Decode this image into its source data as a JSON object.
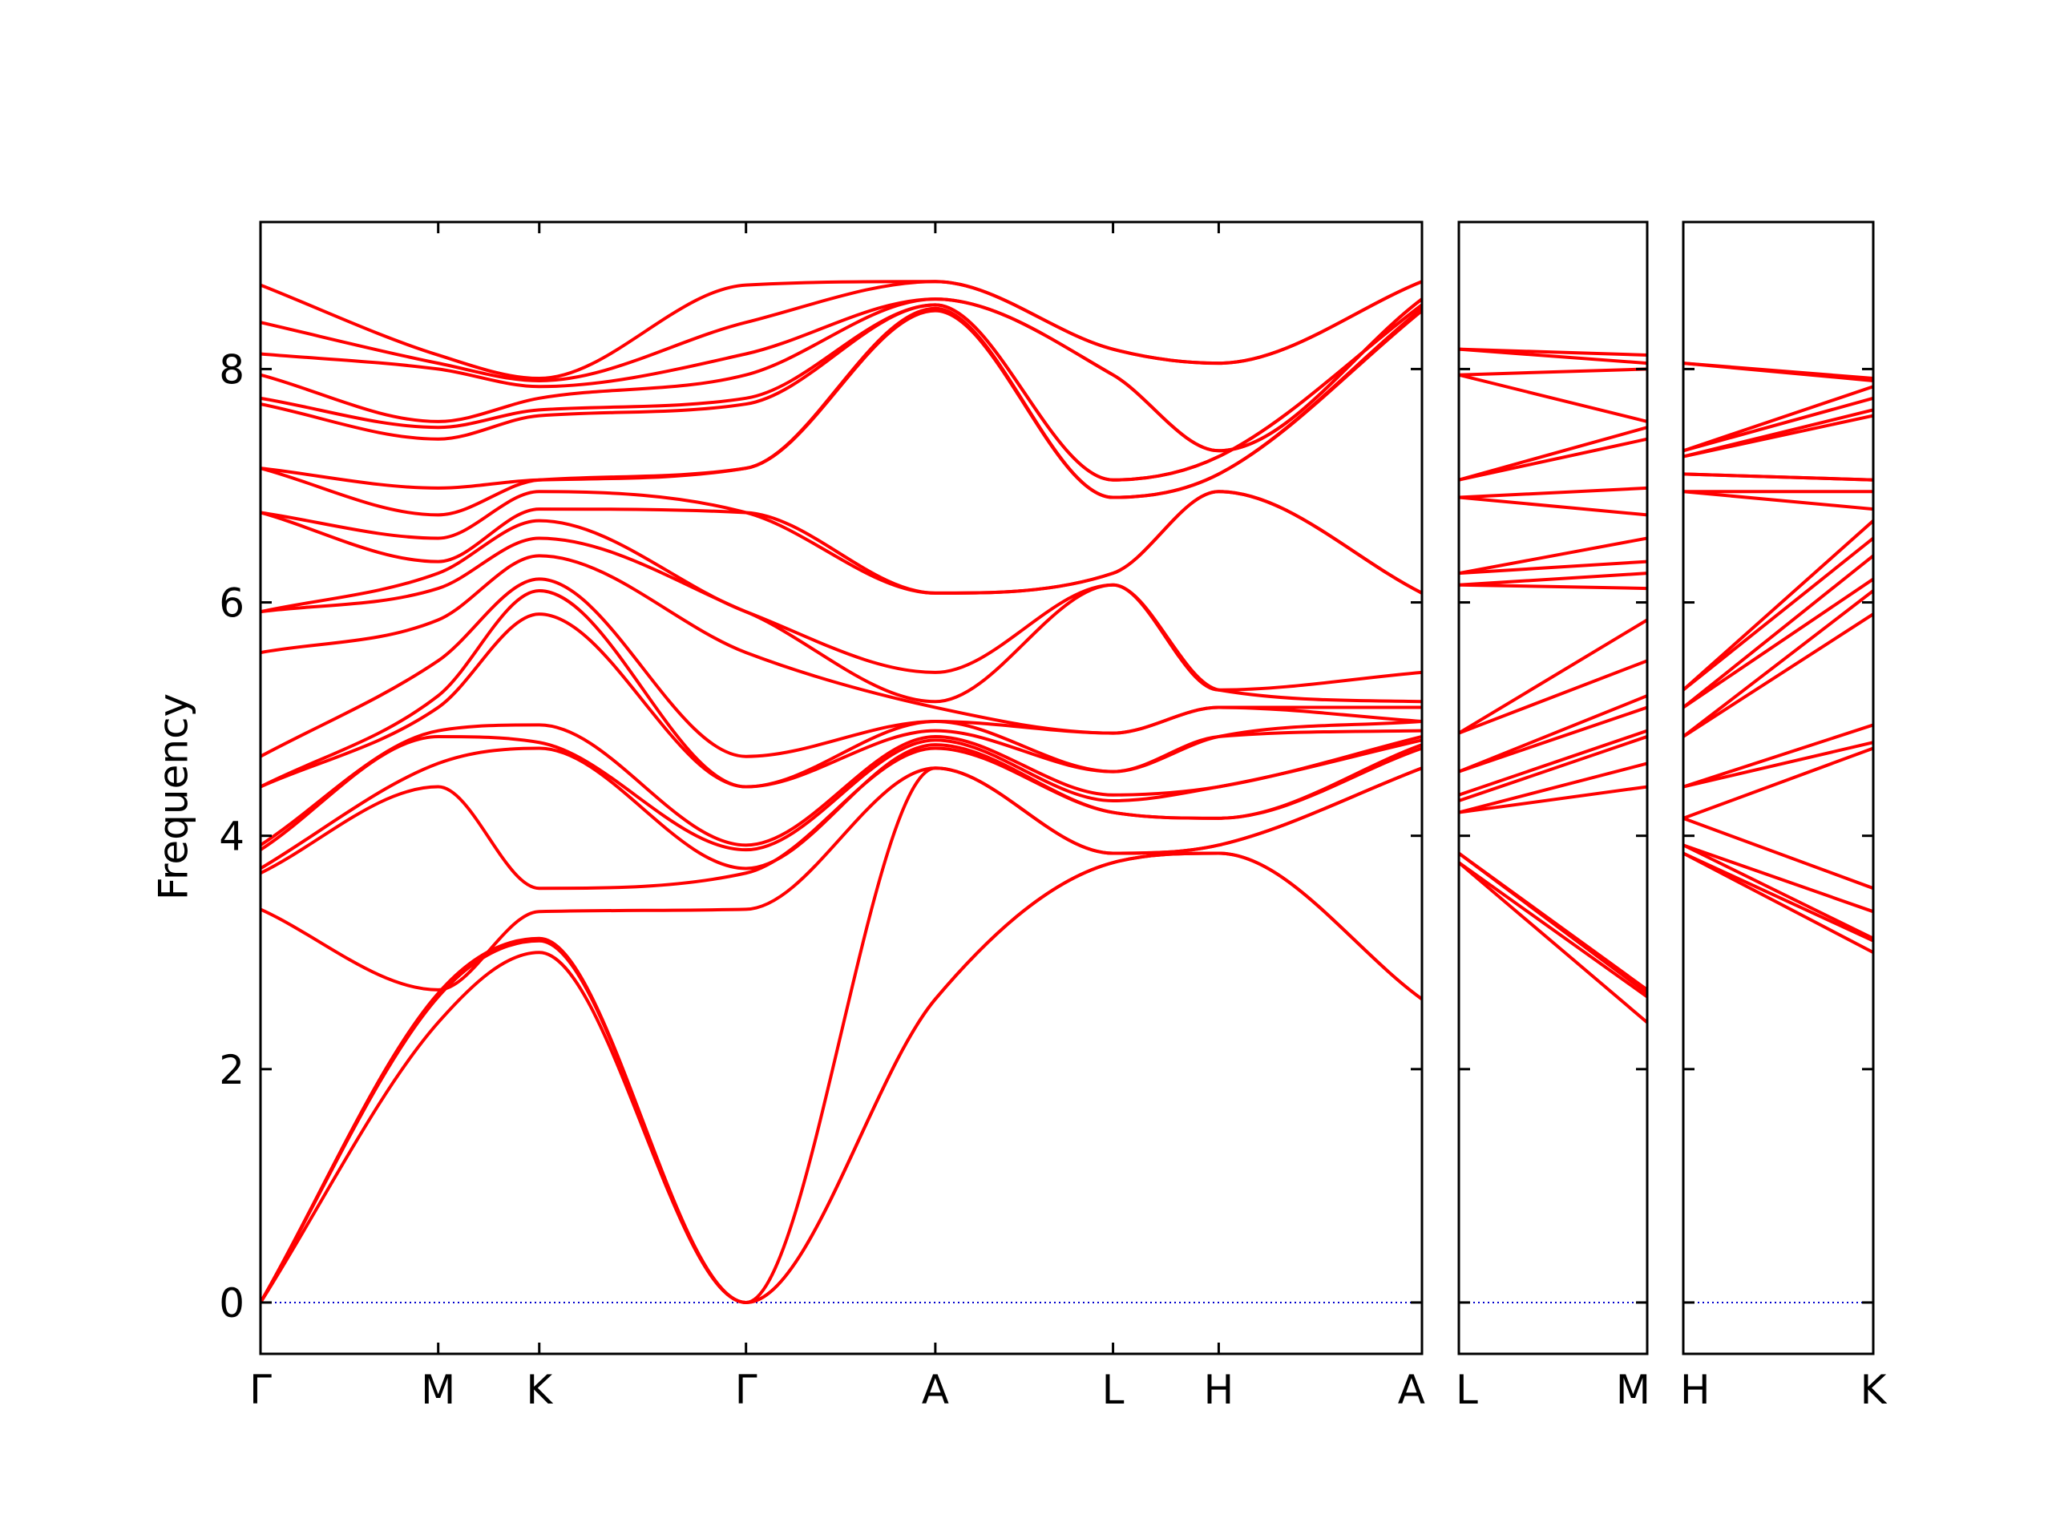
{
  "chart_data": [
    {
      "type": "line",
      "y_label": "Frequency",
      "color": "#ff0000",
      "zero_line_color": "#0000cc",
      "ylim": [
        -0.44,
        9.26
      ],
      "yticks": [
        0,
        2,
        4,
        6,
        8
      ],
      "xlim": [
        0,
        1
      ],
      "xticks": [
        {
          "value": 0,
          "label": "Γ"
        },
        {
          "value": 0.153,
          "label": "M"
        },
        {
          "value": 0.24,
          "label": "K"
        },
        {
          "value": 0.418,
          "label": "Γ"
        },
        {
          "value": 0.581,
          "label": "A"
        },
        {
          "value": 0.734,
          "label": "L"
        },
        {
          "value": 0.825,
          "label": "H"
        },
        {
          "value": 1,
          "label": "A"
        }
      ],
      "x": [
        0,
        0.153,
        0.24,
        0.418,
        0.581,
        0.734,
        0.825,
        1
      ],
      "series": [
        {
          "values": [
            0,
            2.4,
            3.0,
            0,
            2.6,
            3.77,
            3.85,
            2.6
          ]
        },
        {
          "values": [
            0,
            2.62,
            3.1,
            0,
            2.6,
            3.77,
            3.85,
            2.6
          ]
        },
        {
          "values": [
            0,
            2.65,
            3.12,
            0,
            4.58,
            3.85,
            3.92,
            4.58
          ]
        },
        {
          "values": [
            3.37,
            2.68,
            3.35,
            3.37,
            4.58,
            3.85,
            3.92,
            4.58
          ]
        },
        {
          "values": [
            3.68,
            4.42,
            3.55,
            3.68,
            4.75,
            4.2,
            4.15,
            4.75
          ]
        },
        {
          "values": [
            3.72,
            4.62,
            4.75,
            3.72,
            4.78,
            4.2,
            4.15,
            4.78
          ]
        },
        {
          "values": [
            3.88,
            4.85,
            4.8,
            3.88,
            4.82,
            4.3,
            4.42,
            4.82
          ]
        },
        {
          "values": [
            3.92,
            4.9,
            4.95,
            3.92,
            4.85,
            4.35,
            4.42,
            4.85
          ]
        },
        {
          "values": [
            4.42,
            5.1,
            5.9,
            4.42,
            4.9,
            4.55,
            4.85,
            4.9
          ]
        },
        {
          "values": [
            4.42,
            5.2,
            6.1,
            4.42,
            4.98,
            4.55,
            4.85,
            4.98
          ]
        },
        {
          "values": [
            4.68,
            5.5,
            6.2,
            4.68,
            4.98,
            4.88,
            5.1,
            4.98
          ]
        },
        {
          "values": [
            5.57,
            5.85,
            6.4,
            5.57,
            5.1,
            4.88,
            5.1,
            5.1
          ]
        },
        {
          "values": [
            5.92,
            6.12,
            6.55,
            5.92,
            5.15,
            6.15,
            5.25,
            5.15
          ]
        },
        {
          "values": [
            5.92,
            6.25,
            6.7,
            5.92,
            5.4,
            6.15,
            5.25,
            5.4
          ]
        },
        {
          "values": [
            6.77,
            6.35,
            6.8,
            6.77,
            6.08,
            6.25,
            6.95,
            6.08
          ]
        },
        {
          "values": [
            6.77,
            6.55,
            6.95,
            6.77,
            6.08,
            6.25,
            6.95,
            6.08
          ]
        },
        {
          "values": [
            7.15,
            6.75,
            7.05,
            7.15,
            8.5,
            6.9,
            7.1,
            8.5
          ]
        },
        {
          "values": [
            7.15,
            6.98,
            7.05,
            7.15,
            8.52,
            6.9,
            7.1,
            8.52
          ]
        },
        {
          "values": [
            7.7,
            7.4,
            7.6,
            7.7,
            8.55,
            7.05,
            7.25,
            8.55
          ]
        },
        {
          "values": [
            7.75,
            7.5,
            7.65,
            7.75,
            8.55,
            7.05,
            7.25,
            8.55
          ]
        },
        {
          "values": [
            7.95,
            7.55,
            7.75,
            7.95,
            8.6,
            7.95,
            7.3,
            8.6
          ]
        },
        {
          "values": [
            8.13,
            8.0,
            7.85,
            8.13,
            8.6,
            7.95,
            7.3,
            8.6
          ]
        },
        {
          "values": [
            8.4,
            8.05,
            7.9,
            8.4,
            8.75,
            8.17,
            8.05,
            8.75
          ]
        },
        {
          "values": [
            8.72,
            8.12,
            7.92,
            8.72,
            8.75,
            8.17,
            8.05,
            8.75
          ]
        }
      ]
    },
    {
      "type": "line",
      "color": "#ff0000",
      "zero_line_color": "#0000cc",
      "ylim": [
        -0.44,
        9.26
      ],
      "yticks": [
        0,
        2,
        4,
        6,
        8
      ],
      "xlim": [
        0,
        1
      ],
      "xticks": [
        {
          "value": 0,
          "label": "L"
        },
        {
          "value": 1,
          "label": "M"
        }
      ],
      "x": [
        0,
        1
      ],
      "series": [
        {
          "values": [
            3.77,
            2.4
          ]
        },
        {
          "values": [
            3.77,
            2.62
          ]
        },
        {
          "values": [
            3.85,
            2.65
          ]
        },
        {
          "values": [
            3.85,
            2.68
          ]
        },
        {
          "values": [
            4.2,
            4.42
          ]
        },
        {
          "values": [
            4.2,
            4.62
          ]
        },
        {
          "values": [
            4.3,
            4.85
          ]
        },
        {
          "values": [
            4.35,
            4.9
          ]
        },
        {
          "values": [
            4.55,
            5.1
          ]
        },
        {
          "values": [
            4.55,
            5.2
          ]
        },
        {
          "values": [
            4.88,
            5.5
          ]
        },
        {
          "values": [
            4.88,
            5.85
          ]
        },
        {
          "values": [
            6.15,
            6.12
          ]
        },
        {
          "values": [
            6.15,
            6.25
          ]
        },
        {
          "values": [
            6.25,
            6.35
          ]
        },
        {
          "values": [
            6.25,
            6.55
          ]
        },
        {
          "values": [
            6.9,
            6.75
          ]
        },
        {
          "values": [
            6.9,
            6.98
          ]
        },
        {
          "values": [
            7.05,
            7.4
          ]
        },
        {
          "values": [
            7.05,
            7.5
          ]
        },
        {
          "values": [
            7.95,
            7.55
          ]
        },
        {
          "values": [
            7.95,
            8.0
          ]
        },
        {
          "values": [
            8.17,
            8.05
          ]
        },
        {
          "values": [
            8.17,
            8.12
          ]
        }
      ]
    },
    {
      "type": "line",
      "color": "#ff0000",
      "zero_line_color": "#0000cc",
      "ylim": [
        -0.44,
        9.26
      ],
      "yticks": [
        0,
        2,
        4,
        6,
        8
      ],
      "xlim": [
        0,
        1
      ],
      "xticks": [
        {
          "value": 0,
          "label": "H"
        },
        {
          "value": 1,
          "label": "K"
        }
      ],
      "x": [
        0,
        1
      ],
      "series": [
        {
          "values": [
            3.85,
            3.0
          ]
        },
        {
          "values": [
            3.85,
            3.1
          ]
        },
        {
          "values": [
            3.92,
            3.12
          ]
        },
        {
          "values": [
            3.92,
            3.35
          ]
        },
        {
          "values": [
            4.15,
            3.55
          ]
        },
        {
          "values": [
            4.15,
            4.75
          ]
        },
        {
          "values": [
            4.42,
            4.8
          ]
        },
        {
          "values": [
            4.42,
            4.95
          ]
        },
        {
          "values": [
            4.85,
            5.9
          ]
        },
        {
          "values": [
            4.85,
            6.1
          ]
        },
        {
          "values": [
            5.1,
            6.2
          ]
        },
        {
          "values": [
            5.1,
            6.4
          ]
        },
        {
          "values": [
            5.25,
            6.55
          ]
        },
        {
          "values": [
            5.25,
            6.7
          ]
        },
        {
          "values": [
            6.95,
            6.8
          ]
        },
        {
          "values": [
            6.95,
            6.95
          ]
        },
        {
          "values": [
            7.1,
            7.05
          ]
        },
        {
          "values": [
            7.1,
            7.05
          ]
        },
        {
          "values": [
            7.25,
            7.6
          ]
        },
        {
          "values": [
            7.25,
            7.65
          ]
        },
        {
          "values": [
            7.3,
            7.75
          ]
        },
        {
          "values": [
            7.3,
            7.85
          ]
        },
        {
          "values": [
            8.05,
            7.9
          ]
        },
        {
          "values": [
            8.05,
            7.92
          ]
        }
      ]
    }
  ]
}
